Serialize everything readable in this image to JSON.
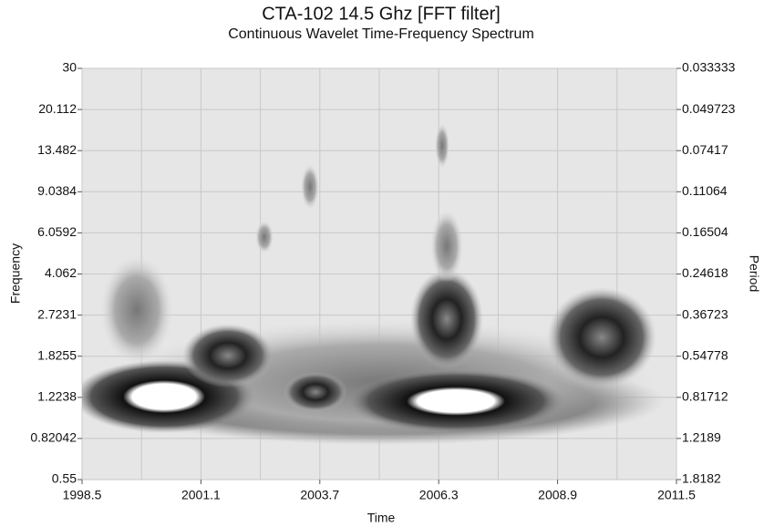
{
  "chart_data": {
    "type": "spectrum",
    "title": "CTA-102 14.5 Ghz [FFT filter]",
    "subtitle": "Continuous Wavelet Time-Frequency Spectrum",
    "x_label": "Time",
    "y_label": "Frequency",
    "y2_label": "Period",
    "xlim": [
      1998.5,
      2011.5
    ],
    "xticks": [
      1998.5,
      2001.1,
      2003.7,
      2006.3,
      2008.9,
      2011.5
    ],
    "ylim": [
      0.55,
      30
    ],
    "yscale": "log",
    "yticks": [
      0.55,
      0.82042,
      1.2238,
      1.8255,
      2.7231,
      4.062,
      6.0592,
      9.0384,
      13.482,
      20.112,
      30
    ],
    "y2lim": [
      1.8182,
      0.033333
    ],
    "y2scale": "log",
    "y2ticks": [
      1.8182,
      1.2189,
      0.81712,
      0.54778,
      0.36723,
      0.24618,
      0.16504,
      0.11064,
      0.07417,
      0.049723,
      0.033333
    ],
    "grid": true
  }
}
